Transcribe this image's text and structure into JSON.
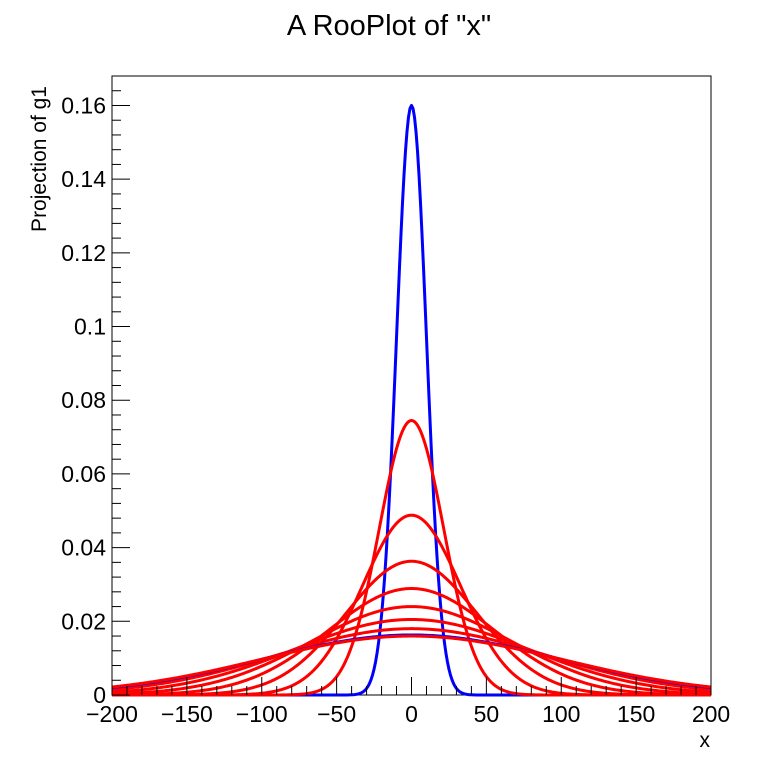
{
  "title": "A RooPlot of \"x\"",
  "chart_data": {
    "type": "line",
    "title": "A RooPlot of \"x\"",
    "xlabel": "x",
    "ylabel": "Projection of g1",
    "xlim": [
      -200,
      200
    ],
    "ylim": [
      0,
      0.168
    ],
    "grid": false,
    "x_ticks": [
      -200,
      -150,
      -100,
      -50,
      0,
      50,
      100,
      150,
      200
    ],
    "x_tick_labels": [
      "−200",
      "−150",
      "−100",
      "−50",
      "0",
      "50",
      "100",
      "150",
      "200"
    ],
    "y_ticks": [
      0,
      0.02,
      0.04,
      0.06,
      0.08,
      0.1,
      0.12,
      0.14,
      0.16
    ],
    "y_tick_labels": [
      "0",
      "0.02",
      "0.04",
      "0.06",
      "0.08",
      "0.1",
      "0.12",
      "0.14",
      "0.16"
    ],
    "curve_shape": "gaussian",
    "series": [
      {
        "color": "#0000ff",
        "mean": 0,
        "sigma": 10,
        "peak": 0.16
      },
      {
        "color": "#ff0000",
        "mean": 0,
        "sigma": 21.5,
        "peak": 0.0745
      },
      {
        "color": "#ff0000",
        "mean": 0,
        "sigma": 32.8,
        "peak": 0.0488
      },
      {
        "color": "#ff0000",
        "mean": 0,
        "sigma": 44.0,
        "peak": 0.0363
      },
      {
        "color": "#ff0000",
        "mean": 0,
        "sigma": 55.5,
        "peak": 0.0289
      },
      {
        "color": "#ff0000",
        "mean": 0,
        "sigma": 66.8,
        "peak": 0.024
      },
      {
        "color": "#ff0000",
        "mean": 0,
        "sigma": 78.0,
        "peak": 0.0205
      },
      {
        "color": "#ff0000",
        "mean": 0,
        "sigma": 89.0,
        "peak": 0.018
      },
      {
        "color": "#0000ff",
        "mean": 0,
        "sigma": 98.0,
        "peak": 0.0163
      },
      {
        "color": "#ff0000",
        "mean": 0,
        "sigma": 100.0,
        "peak": 0.016
      }
    ]
  }
}
